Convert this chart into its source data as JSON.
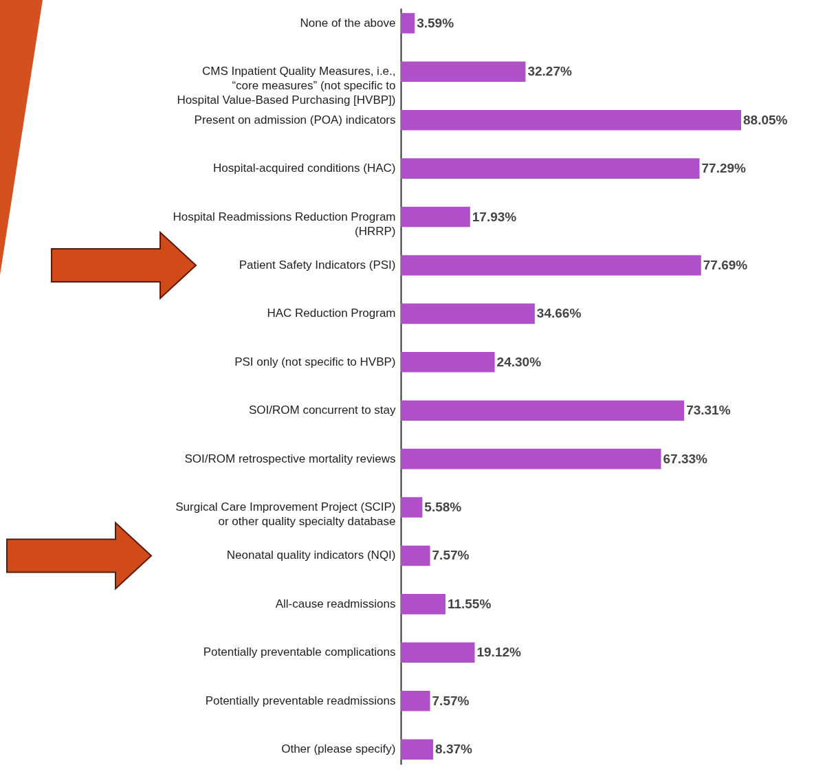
{
  "chart_data": {
    "type": "bar",
    "orientation": "horizontal",
    "categories": [
      "None of the above",
      "CMS Inpatient Quality Measures, i.e., “core measures” (not specific to Hospital Value-Based Purchasing [HVBP])",
      "Present on admission (POA) indicators",
      "Hospital-acquired conditions (HAC)",
      "Hospital Readmissions Reduction Program (HRRP)",
      "Patient Safety Indicators (PSI)",
      "HAC Reduction Program",
      "PSI only (not specific to HVBP)",
      "SOI/ROM concurrent to stay",
      "SOI/ROM retrospective mortality reviews",
      "Surgical Care Improvement Project (SCIP) or other quality specialty database",
      "Neonatal quality indicators (NQI)",
      "All-cause readmissions",
      "Potentially preventable complications",
      "Potentially preventable readmissions",
      "Other (please specify)"
    ],
    "values": [
      3.59,
      32.27,
      88.05,
      77.29,
      17.93,
      77.69,
      34.66,
      24.3,
      73.31,
      67.33,
      5.58,
      7.57,
      11.55,
      19.12,
      7.57,
      8.37
    ],
    "value_labels": [
      "3.59%",
      "32.27%",
      "88.05%",
      "77.29%",
      "17.93%",
      "77.69%",
      "34.66%",
      "24.30%",
      "73.31%",
      "67.33%",
      "5.58%",
      "7.57%",
      "11.55%",
      "19.12%",
      "7.57%",
      "8.37%"
    ],
    "color": "#b050c8"
  }
}
